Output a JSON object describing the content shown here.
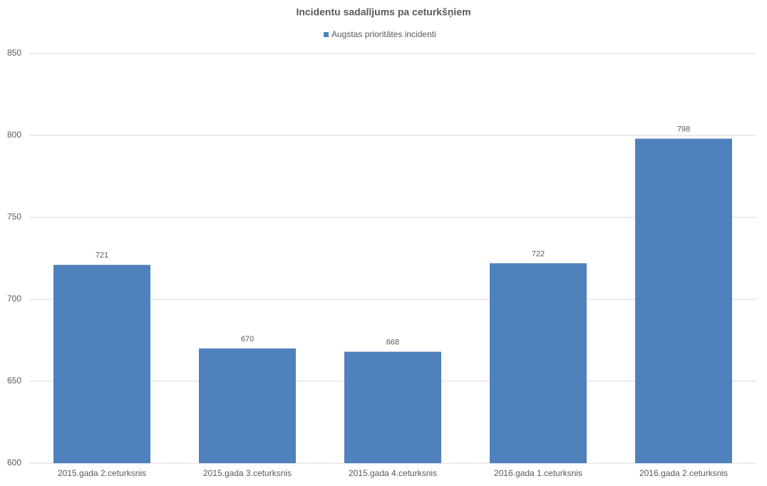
{
  "chart_data": {
    "type": "bar",
    "title": "Incidentu sadalījums pa ceturkšņiem",
    "categories": [
      "2015.gada 2.ceturksnis",
      "2015.gada 3.ceturksnis",
      "2015.gada 4.ceturksnis",
      "2016.gada 1.ceturksnis",
      "2016.gada 2.ceturksnis"
    ],
    "series": [
      {
        "name": "Augstas prioritātes incidenti",
        "color": "#4f81bd",
        "values": [
          721,
          670,
          668,
          722,
          798
        ]
      }
    ],
    "ylim": [
      600,
      850
    ],
    "yticks": [
      600,
      650,
      700,
      750,
      800,
      850
    ],
    "grid": true,
    "legend": "top"
  }
}
